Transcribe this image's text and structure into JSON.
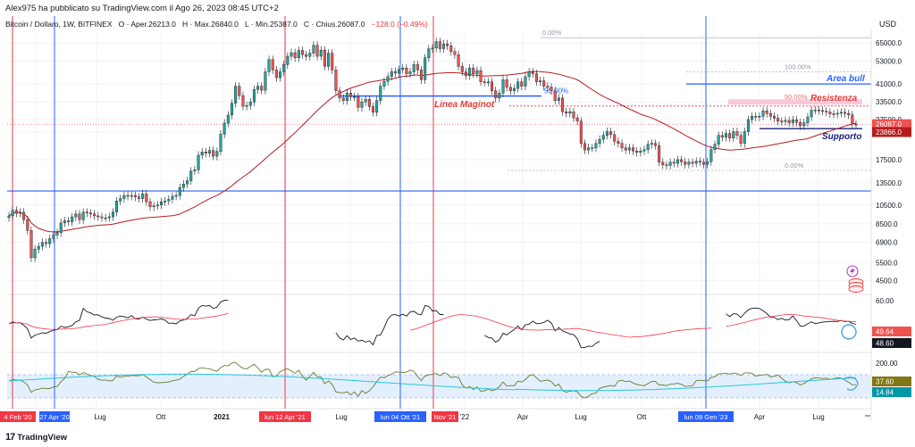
{
  "header": {
    "published_by": "Alex975 ha pubblicato su TradingView.com il Ago 26, 2023 08:45 UTC+2",
    "symbol": "Bitcoin / Dollaro, 1W, BITFINEX",
    "open": "O · Aper.26213.0",
    "high": "H · Max.26840.0",
    "low": "L · Min.25387.0",
    "close": "C · Chius.26087.0",
    "change": "−128.0 (−0.49%)",
    "currency": "USD"
  },
  "footer": {
    "brand": "TradingView",
    "logo": "tradingview-logo-icon"
  },
  "colors": {
    "up": "#26a69a",
    "down": "#ef5350",
    "blue_line": "#2962ff",
    "red_line": "#f23645",
    "ma": "#b71c1c",
    "osc": "#131722",
    "band": "#e3effd",
    "lower_osc": "#6b7a2a",
    "lower_ma": "#26c6da"
  },
  "chart_data": {
    "type": "candlestick",
    "scale": "log",
    "price_axis_labels": [
      "65000.0",
      "53000.0",
      "41000.0",
      "33500.0",
      "27500.0",
      "23866.0",
      "17500.0",
      "13500.0",
      "10500.0",
      "8500.0",
      "6900.0",
      "5500.0",
      "4500.0"
    ],
    "price_axis_tag": "26087.0",
    "support_tag": "23866.0",
    "time_axis_labels": [
      "Lug",
      "Ott",
      "2021",
      "Lug",
      "'22",
      "Apr",
      "Lug",
      "Ott",
      "Apr",
      "Lug"
    ],
    "date_tags": [
      {
        "label": "4 Feb '20",
        "color": "red"
      },
      {
        "label": "27 Apr '20",
        "color": "blue"
      },
      {
        "label": "lun 12 Apr '21",
        "color": "red"
      },
      {
        "label": "lun 04 Ott '21",
        "color": "blue"
      },
      {
        "label": "Nov '21",
        "color": "red"
      },
      {
        "label": "lun 09 Gen '23",
        "color": "blue"
      }
    ],
    "annotations": [
      {
        "text": "Area bull",
        "price": 41000
      },
      {
        "text": "Resistenza",
        "price": 33500
      },
      {
        "text": "Supporto",
        "price": 23866
      },
      {
        "text": "Linea Maginot",
        "price": 30500
      }
    ],
    "fib_levels": [
      {
        "label": "0.00%",
        "price": 69000
      },
      {
        "label": "100.00%",
        "price": 47000
      },
      {
        "label": "50.00%",
        "price": 36000
      },
      {
        "label": "50.00%",
        "price": 33500
      },
      {
        "label": "0.00%",
        "price": 15500
      }
    ],
    "horizontal_lines": [
      {
        "price": 12300,
        "color": "blue"
      },
      {
        "price": 35800,
        "color": "blue"
      },
      {
        "price": 41000,
        "color": "blue"
      },
      {
        "price": 24800,
        "color": "blue"
      }
    ],
    "rsi_axis_labels": [
      "60.00",
      "49.64",
      "48.60"
    ],
    "lower_axis_labels": [
      "200.00",
      "37.60",
      "14.84"
    ],
    "close": [
      9300,
      9900,
      9600,
      9700,
      8900,
      7900,
      5800,
      6400,
      6600,
      6900,
      6800,
      7200,
      7500,
      7700,
      8600,
      8800,
      8700,
      9200,
      9500,
      8900,
      9700,
      9600,
      9500,
      9300,
      9200,
      9100,
      9100,
      9200,
      9700,
      11000,
      11300,
      11700,
      11600,
      11700,
      11500,
      11300,
      11900,
      10900,
      10300,
      10400,
      10500,
      10900,
      11000,
      11200,
      11600,
      11700,
      12800,
      13300,
      13800,
      15400,
      15600,
      18400,
      19100,
      18800,
      19400,
      18200,
      19200,
      23300,
      26400,
      28900,
      33000,
      40000,
      36000,
      31900,
      32200,
      33500,
      38500,
      40000,
      38200,
      47000,
      54000,
      48000,
      44000,
      47000,
      51000,
      56000,
      58300,
      55000,
      59800,
      57000,
      55900,
      58000,
      63400,
      56000,
      60000,
      50000,
      58000,
      48000,
      38000,
      35000,
      34000,
      37000,
      35500,
      35500,
      31500,
      33500,
      34500,
      31800,
      29800,
      34000,
      40000,
      42200,
      44600,
      47100,
      46300,
      48200,
      49100,
      46000,
      47000,
      51000,
      48000,
      43000,
      55000,
      60900,
      61400,
      66000,
      61000,
      64400,
      63000,
      59000,
      57000,
      50000,
      47000,
      45000,
      49000,
      46000,
      47700,
      42000,
      41800,
      42000,
      38000,
      35000,
      37000,
      43000,
      39500,
      38000,
      39000,
      42000,
      40000,
      44500,
      47000,
      46000,
      42000,
      42500,
      40000,
      39600,
      38000,
      34000,
      35000,
      30000,
      29500,
      30000,
      28000,
      27000,
      21000,
      19500,
      20000,
      20000,
      21000,
      22000,
      23000,
      24000,
      23200,
      21500,
      21000,
      20000,
      19500,
      20000,
      19300,
      19000,
      19300,
      19600,
      20800,
      21000,
      20500,
      17000,
      16500,
      16400,
      17000,
      16800,
      17500,
      17100,
      16600,
      17000,
      16800,
      17200,
      17000,
      16600,
      17100,
      19600,
      20800,
      23000,
      22500,
      23500,
      22300,
      24000,
      23000,
      21000,
      24000,
      27500,
      28500,
      28200,
      28500,
      30300,
      29400,
      28500,
      27900,
      27000,
      26900,
      27200,
      26500,
      27400,
      26600,
      25600,
      26500,
      28300,
      30500,
      30600,
      30400,
      30200,
      29900,
      29300,
      29200,
      29500,
      29800,
      29400,
      29000,
      26100,
      26087
    ]
  }
}
